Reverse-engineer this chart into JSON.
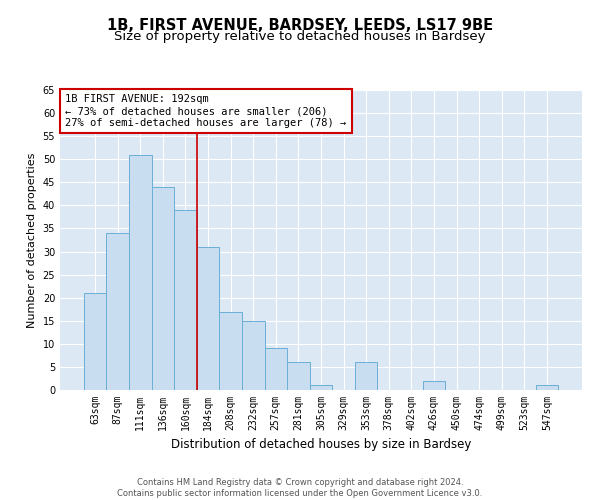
{
  "title": "1B, FIRST AVENUE, BARDSEY, LEEDS, LS17 9BE",
  "subtitle": "Size of property relative to detached houses in Bardsey",
  "xlabel": "Distribution of detached houses by size in Bardsey",
  "ylabel": "Number of detached properties",
  "bin_labels": [
    "63sqm",
    "87sqm",
    "111sqm",
    "136sqm",
    "160sqm",
    "184sqm",
    "208sqm",
    "232sqm",
    "257sqm",
    "281sqm",
    "305sqm",
    "329sqm",
    "353sqm",
    "378sqm",
    "402sqm",
    "426sqm",
    "450sqm",
    "474sqm",
    "499sqm",
    "523sqm",
    "547sqm"
  ],
  "bar_values": [
    21,
    34,
    51,
    44,
    39,
    31,
    17,
    15,
    9,
    6,
    1,
    0,
    6,
    0,
    0,
    2,
    0,
    0,
    0,
    0,
    1
  ],
  "bar_color": "#c9ddf0",
  "bar_edgecolor": "#6aaed6",
  "vline_x_index": 4.5,
  "property_sqm": 192,
  "annotation_text": "1B FIRST AVENUE: 192sqm\n← 73% of detached houses are smaller (206)\n27% of semi-detached houses are larger (78) →",
  "annotation_box_edgecolor": "#cc0000",
  "annotation_box_facecolor": "white",
  "vline_color": "#cc0000",
  "ylim": [
    0,
    65
  ],
  "yticks": [
    0,
    5,
    10,
    15,
    20,
    25,
    30,
    35,
    40,
    45,
    50,
    55,
    60,
    65
  ],
  "background_color": "#dce9f5",
  "plot_bg_color": "#dce9f5",
  "footer_text": "Contains HM Land Registry data © Crown copyright and database right 2024.\nContains public sector information licensed under the Open Government Licence v3.0.",
  "title_fontsize": 10.5,
  "subtitle_fontsize": 9.5,
  "xlabel_fontsize": 8.5,
  "ylabel_fontsize": 8,
  "tick_fontsize": 7,
  "annotation_fontsize": 7.5,
  "footer_fontsize": 6
}
